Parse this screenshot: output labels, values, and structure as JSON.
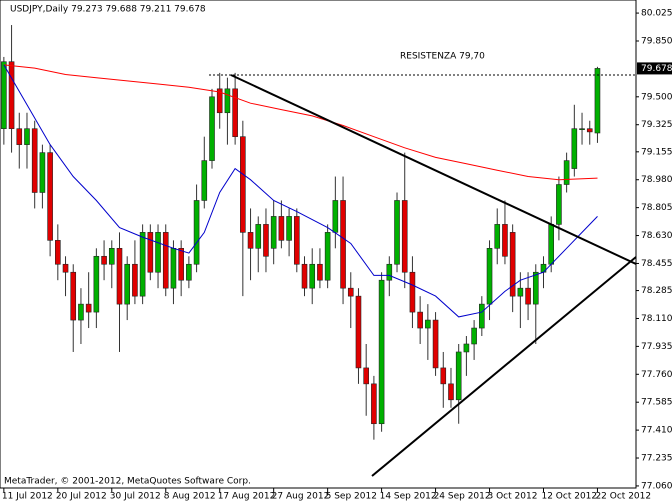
{
  "chart_data": {
    "type": "candlestick",
    "title": "USDJPY,Daily  79.273 79.688 79.211 79.678",
    "annotation": "RESISTENZA 79,70",
    "footer": "MetaTrader, © 2001-2012, MetaQuotes Software Corp.",
    "up_color": "#00b000",
    "down_color": "#e00000",
    "xlim": [
      -0.5,
      82
    ],
    "ylim": [
      77.047,
      80.107
    ],
    "price_marker": 79.678,
    "xticks": [
      {
        "value": 0,
        "label": "11 Jul 2012"
      },
      {
        "value": 7,
        "label": "20 Jul 2012"
      },
      {
        "value": 14,
        "label": "30 Jul 2012"
      },
      {
        "value": 21,
        "label": "8 Aug 2012"
      },
      {
        "value": 28,
        "label": "17 Aug 2012"
      },
      {
        "value": 35,
        "label": "27 Aug 2012"
      },
      {
        "value": 42,
        "label": "5 Sep 2012"
      },
      {
        "value": 49,
        "label": "14 Sep 2012"
      },
      {
        "value": 56,
        "label": "24 Sep 2012"
      },
      {
        "value": 63,
        "label": "3 Oct 2012"
      },
      {
        "value": 70,
        "label": "12 Oct 2012"
      },
      {
        "value": 77,
        "label": "22 Oct 2012"
      }
    ],
    "yticks": [
      80.025,
      {
        "value": 79.85,
        "label": "79.850"
      },
      {
        "value": 79.5,
        "label": "79.500"
      },
      79.325,
      79.155,
      {
        "value": 78.98,
        "label": "78.980"
      },
      78.805,
      {
        "value": 78.63,
        "label": "78.630"
      },
      78.455,
      78.285,
      {
        "value": 78.11,
        "label": "78.110"
      },
      77.935,
      {
        "value": 77.76,
        "label": "77.760"
      },
      77.585,
      {
        "value": 77.41,
        "label": "77.410"
      },
      77.235,
      {
        "value": 77.06,
        "label": "77.060"
      }
    ],
    "open": [
      79.3,
      79.72,
      79.3,
      79.2,
      79.3,
      78.9,
      79.15,
      78.6,
      78.45,
      78.4,
      78.1,
      78.2,
      78.15,
      78.5,
      78.45,
      78.55,
      78.2,
      78.45,
      78.25,
      78.65,
      78.4,
      78.65,
      78.3,
      78.55,
      78.35,
      78.45,
      78.85,
      79.1,
      79.55,
      79.4,
      79.55,
      79.25,
      78.65,
      78.55,
      78.7,
      78.55,
      78.75,
      78.6,
      78.75,
      78.45,
      78.3,
      78.45,
      78.35,
      78.65,
      78.85,
      78.3,
      78.25,
      77.8,
      77.7,
      77.45,
      78.35,
      78.45,
      78.85,
      78.4,
      78.15,
      78.05,
      78.1,
      77.8,
      77.7,
      77.6,
      77.9,
      77.95,
      78.05,
      78.2,
      78.55,
      78.7,
      78.65,
      78.25,
      78.3,
      78.2,
      78.4,
      78.45,
      78.7,
      78.95,
      79.05,
      79.3,
      79.3,
      79.273
    ],
    "high": [
      79.75,
      79.95,
      79.4,
      79.4,
      79.35,
      79.2,
      79.2,
      78.7,
      78.5,
      78.45,
      78.3,
      78.4,
      78.55,
      78.6,
      78.6,
      78.65,
      78.5,
      78.6,
      78.7,
      78.7,
      78.7,
      78.7,
      78.6,
      78.6,
      78.5,
      78.95,
      79.25,
      79.55,
      79.65,
      79.62,
      79.65,
      79.35,
      78.8,
      78.75,
      78.8,
      78.85,
      78.85,
      78.8,
      78.8,
      78.5,
      78.55,
      78.55,
      78.7,
      79.0,
      79.0,
      78.4,
      78.3,
      77.95,
      77.75,
      78.4,
      78.5,
      78.9,
      79.15,
      78.5,
      78.25,
      78.2,
      78.15,
      77.9,
      77.8,
      77.95,
      78.0,
      78.1,
      78.25,
      78.6,
      78.8,
      78.85,
      78.7,
      78.4,
      78.4,
      78.45,
      78.5,
      78.75,
      79.0,
      79.15,
      79.45,
      79.4,
      79.35,
      79.688
    ],
    "low": [
      79.2,
      79.15,
      79.05,
      79.05,
      78.8,
      78.8,
      78.5,
      78.35,
      78.25,
      77.9,
      77.95,
      78.05,
      78.05,
      78.35,
      78.3,
      77.9,
      78.1,
      78.2,
      78.2,
      78.35,
      78.3,
      78.25,
      78.2,
      78.25,
      78.3,
      78.4,
      78.8,
      79.05,
      79.3,
      79.2,
      79.2,
      78.25,
      78.35,
      78.4,
      78.4,
      78.45,
      78.55,
      78.5,
      78.4,
      78.25,
      78.2,
      78.3,
      78.3,
      78.55,
      78.2,
      78.05,
      77.7,
      77.5,
      77.35,
      77.4,
      78.25,
      78.4,
      78.3,
      78.05,
      77.95,
      77.85,
      77.75,
      77.55,
      77.55,
      77.45,
      77.75,
      77.85,
      78.0,
      78.1,
      78.45,
      78.45,
      78.15,
      78.05,
      78.1,
      77.95,
      78.3,
      78.4,
      78.6,
      78.9,
      79.0,
      79.2,
      79.2,
      79.211
    ],
    "close": [
      79.72,
      79.3,
      79.2,
      79.3,
      78.9,
      79.15,
      78.6,
      78.45,
      78.4,
      78.1,
      78.2,
      78.15,
      78.5,
      78.45,
      78.55,
      78.2,
      78.45,
      78.25,
      78.65,
      78.4,
      78.65,
      78.3,
      78.55,
      78.35,
      78.45,
      78.85,
      79.1,
      79.5,
      79.4,
      79.55,
      79.25,
      78.65,
      78.55,
      78.7,
      78.5,
      78.75,
      78.6,
      78.75,
      78.45,
      78.3,
      78.45,
      78.35,
      78.65,
      78.85,
      78.3,
      78.25,
      77.8,
      77.7,
      77.45,
      78.35,
      78.45,
      78.85,
      78.4,
      78.15,
      78.05,
      78.1,
      77.8,
      77.7,
      77.6,
      77.9,
      77.95,
      78.05,
      78.2,
      78.55,
      78.7,
      78.5,
      78.25,
      78.3,
      78.2,
      78.4,
      78.45,
      78.7,
      78.95,
      79.1,
      79.3,
      79.3,
      79.28,
      79.678
    ],
    "series": [
      {
        "color": "#ff0000",
        "x": [
          0,
          4,
          8,
          12,
          16,
          20,
          24,
          28,
          32,
          36,
          40,
          44,
          48,
          52,
          56,
          60,
          64,
          68,
          72,
          77
        ],
        "values": [
          79.7,
          79.68,
          79.64,
          79.62,
          79.6,
          79.58,
          79.56,
          79.53,
          79.46,
          79.42,
          79.38,
          79.32,
          79.25,
          79.18,
          79.12,
          79.08,
          79.04,
          79.0,
          78.98,
          78.99
        ]
      },
      {
        "color": "#0000cc",
        "x": [
          0,
          3,
          6,
          9,
          12,
          15,
          18,
          22,
          24,
          26,
          28,
          30,
          32,
          35,
          38,
          42,
          45,
          48,
          50,
          53,
          56,
          59,
          62,
          65,
          67,
          70,
          73,
          75,
          77
        ],
        "values": [
          79.7,
          79.45,
          79.2,
          79.0,
          78.85,
          78.68,
          78.62,
          78.55,
          78.52,
          78.65,
          78.9,
          79.05,
          78.98,
          78.85,
          78.78,
          78.68,
          78.58,
          78.38,
          78.38,
          78.32,
          78.25,
          78.12,
          78.15,
          78.28,
          78.35,
          78.4,
          78.55,
          78.65,
          78.75
        ]
      }
    ]
  }
}
